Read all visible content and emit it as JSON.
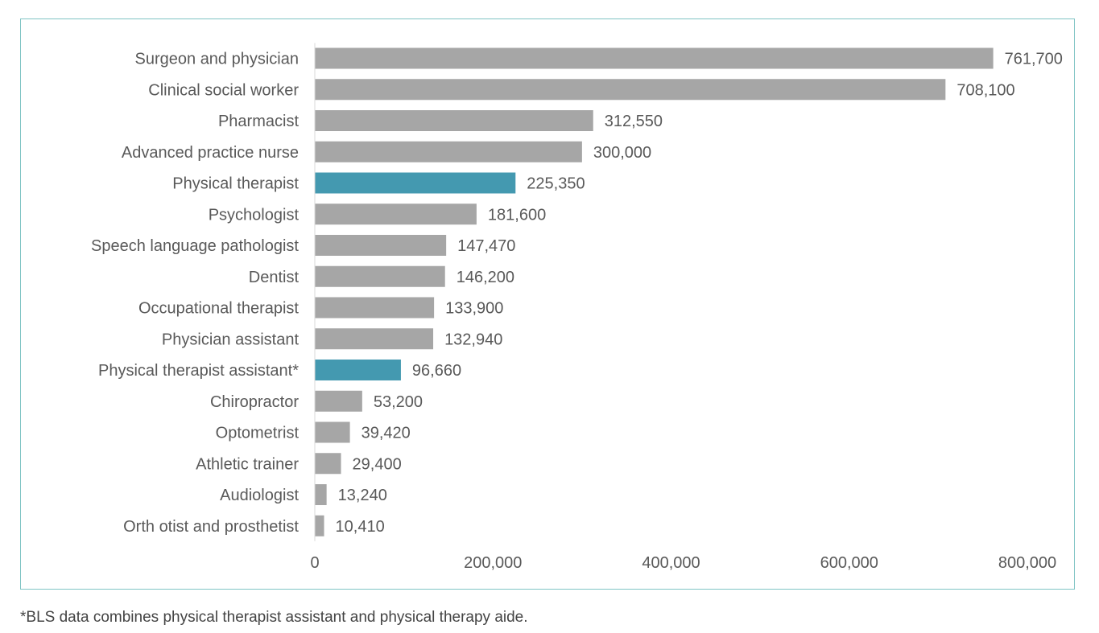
{
  "chart_data": {
    "type": "bar",
    "orientation": "horizontal",
    "categories": [
      "Surgeon and physician",
      "Clinical social worker",
      "Pharmacist",
      "Advanced practice nurse",
      "Physical therapist",
      "Psychologist",
      "Speech language pathologist",
      "Dentist",
      "Occupational therapist",
      "Physician assistant",
      "Physical therapist assistant*",
      "Chiropractor",
      "Optometrist",
      "Athletic trainer",
      "Audiologist",
      "Orth otist and prosthetist"
    ],
    "values": [
      761700,
      708100,
      312550,
      300000,
      225350,
      181600,
      147470,
      146200,
      133900,
      132940,
      96660,
      53200,
      39420,
      29400,
      13240,
      10410
    ],
    "value_labels": [
      "761,700",
      "708,100",
      "312,550",
      "300,000",
      "225,350",
      "181,600",
      "147,470",
      "146,200",
      "133,900",
      "132,940",
      "96,660",
      "53,200",
      "39,420",
      "29,400",
      "13,240",
      "10,410"
    ],
    "highlighted": [
      "Physical therapist",
      "Physical therapist assistant*"
    ],
    "xlim": [
      0,
      800000
    ],
    "xticks": [
      0,
      200000,
      400000,
      600000,
      800000
    ],
    "xtick_labels": [
      "0",
      "200,000",
      "400,000",
      "600,000",
      "800,000"
    ],
    "grid": false,
    "colors": {
      "default_bar": "#a6a6a6",
      "highlight_bar": "#4499b0",
      "frame": "#7fc4c4",
      "text": "#595959"
    }
  },
  "footnote": "*BLS data combines physical therapist assistant and physical therapy aide."
}
